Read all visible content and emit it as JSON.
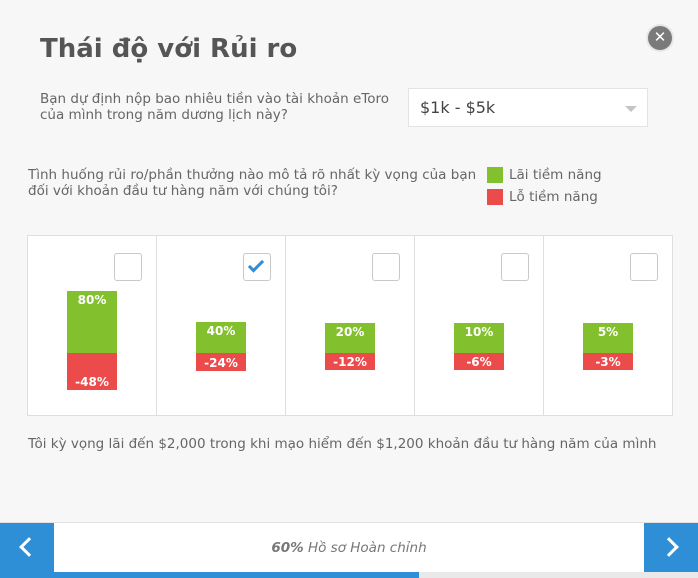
{
  "title": "Thái độ với Rủi ro",
  "deposit": {
    "question": "Bạn dự định nộp bao nhiêu tiền vào tài khoản eToro của mình trong năm dương lịch này?",
    "selected": "$1k - $5k"
  },
  "risk": {
    "question": "Tình huống rủi ro/phần thưởng nào mô tả rõ nhất kỳ vọng của bạn đối với khoản đầu tư hàng năm với chúng tôi?",
    "legend_gain": "Lãi tiềm năng",
    "legend_loss": "Lỗ tiềm năng",
    "gain_color": "#82c12d",
    "loss_color": "#ec4b4b",
    "options": [
      {
        "gain_label": "80%",
        "loss_label": "-48%",
        "gain": 80,
        "loss": 48,
        "checked": false
      },
      {
        "gain_label": "40%",
        "loss_label": "-24%",
        "gain": 40,
        "loss": 24,
        "checked": true
      },
      {
        "gain_label": "20%",
        "loss_label": "-12%",
        "gain": 20,
        "loss": 12,
        "checked": false
      },
      {
        "gain_label": "10%",
        "loss_label": "-6%",
        "gain": 10,
        "loss": 6,
        "checked": false
      },
      {
        "gain_label": "5%",
        "loss_label": "-3%",
        "gain": 5,
        "loss": 3,
        "checked": false
      }
    ]
  },
  "summary": "Tôi kỳ vọng lãi đến $2,000 trong khi mạo hiểm đến $1,200 khoản đầu tư hàng năm của mình",
  "footer": {
    "progress_percent": "60%",
    "progress_label": "Hồ sơ Hoàn chỉnh",
    "progress": 0.6
  },
  "icons": {
    "close": "close-icon",
    "prev": "chevron-left-icon",
    "next": "chevron-right-icon"
  }
}
